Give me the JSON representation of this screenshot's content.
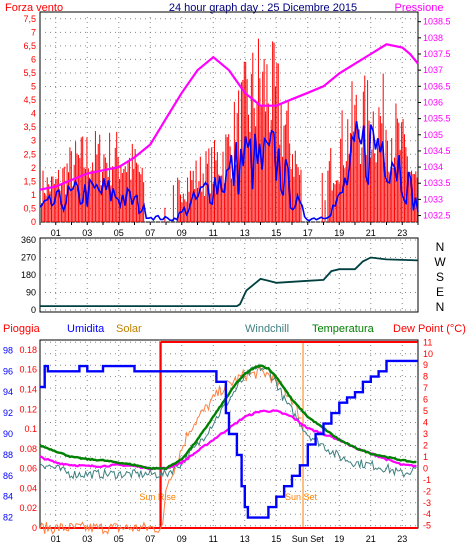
{
  "chart_data": [
    {
      "type": "line",
      "title": "24 hour graph day : 25 Dicembre 2015",
      "left_axis_label": "Forza vento",
      "right_axis_label": "Pressione",
      "x_ticks": [
        "01",
        "03",
        "05",
        "07",
        "09",
        "11",
        "13",
        "15",
        "17",
        "19",
        "21",
        "23"
      ],
      "y_left_ticks": [
        "7,5",
        "7",
        "6,5",
        "6",
        "5,5",
        "5",
        "4,5",
        "4",
        "3,5",
        "3",
        "2,5",
        "2",
        "1,5",
        "1",
        "0,5",
        "0"
      ],
      "y_right_ticks": [
        "1038.5",
        "1038",
        "1037.5",
        "1037",
        "1036.5",
        "1036",
        "1035.5",
        "1035",
        "1034.5",
        "1034",
        "1033.5",
        "1033",
        "1032.5"
      ],
      "xlim": [
        0,
        24
      ],
      "y_left_lim": [
        0,
        7.75
      ],
      "y_right_lim": [
        1032.3,
        1038.8
      ],
      "colors": {
        "wind_gust": "#ff0000",
        "wind_avg": "#0000ff",
        "pressure": "#ff00ff"
      },
      "series": [
        {
          "key": "pressure",
          "x": [
            0,
            1,
            2,
            3,
            4,
            5,
            6,
            7,
            8,
            9,
            10,
            11,
            12,
            13,
            14,
            15,
            16,
            17,
            18,
            19,
            20,
            21,
            22,
            23,
            23.5,
            24
          ],
          "values": [
            1033.3,
            1033.4,
            1033.6,
            1033.8,
            1033.9,
            1034,
            1034.3,
            1034.7,
            1035.5,
            1036.3,
            1037,
            1037.4,
            1037,
            1036.3,
            1035.9,
            1035.9,
            1036.1,
            1036.3,
            1036.5,
            1036.9,
            1037.2,
            1037.5,
            1037.8,
            1037.7,
            1037.5,
            1037.2
          ]
        }
      ]
    },
    {
      "type": "line",
      "y_ticks": [
        "360",
        "270",
        "180",
        "90",
        "0"
      ],
      "right_labels": [
        "N",
        "W",
        "S",
        "E",
        "N"
      ],
      "ylim": [
        0,
        360
      ],
      "colors": {
        "direction": "#004040"
      },
      "series": [
        {
          "key": "direction",
          "x": [
            0,
            12.5,
            12.7,
            13.1,
            14,
            14.5,
            15,
            16,
            17,
            18,
            18.5,
            19,
            20,
            20.5,
            21,
            22,
            24
          ],
          "values": [
            20,
            20,
            30,
            100,
            160,
            150,
            140,
            145,
            150,
            155,
            200,
            210,
            210,
            250,
            270,
            260,
            255
          ]
        }
      ]
    },
    {
      "type": "line",
      "legend": [
        "Pioggia",
        "Umidita",
        "Solar",
        "Windchill",
        "Temperatura",
        "Dew Point (°C)"
      ],
      "x_ticks": [
        "01",
        "03",
        "05",
        "07",
        "09",
        "11",
        "13",
        "15",
        "Sun Set",
        "19",
        "21",
        "23"
      ],
      "y_rain_ticks": [
        "0.18",
        "0.16",
        "0.14",
        "0.12",
        "0.1",
        "0.08",
        "0.06",
        "0.04",
        "0.02",
        "0"
      ],
      "y_humidity_ticks": [
        "98",
        "96",
        "94",
        "92",
        "90",
        "88",
        "86",
        "84",
        "82"
      ],
      "y_temp_ticks": [
        "11",
        "10",
        "9",
        "8",
        "7",
        "6",
        "5",
        "4",
        "3",
        "2",
        "1",
        "0",
        "-1",
        "-2",
        "-3",
        "-4",
        "-5"
      ],
      "annotations": [
        "Sun Rise",
        "Sun Set"
      ],
      "xlim": [
        0,
        24
      ],
      "humidity_lim": [
        81,
        99
      ],
      "temp_lim": [
        -5.2,
        11.2
      ],
      "colors": {
        "rain": "#ff0000",
        "humidity": "#0000ff",
        "solar": "#ff8040",
        "windchill": "#408080",
        "temperature": "#008000",
        "dewpoint": "#ff00ff",
        "sun_line": "#ff8000"
      },
      "sunrise_hour": 7.6,
      "sunset_hour": 16.7,
      "series": [
        {
          "key": "humidity",
          "x": [
            0,
            0.3,
            0.5,
            1,
            2,
            2.5,
            3,
            4,
            5,
            6,
            7,
            8,
            9,
            10,
            11,
            11.2,
            11.8,
            12,
            12.5,
            12.8,
            13,
            13.2,
            13.5,
            14,
            14.5,
            15,
            15.3,
            15.5,
            16,
            16.5,
            17,
            17.5,
            18,
            18.5,
            19,
            19.5,
            20,
            20.5,
            21,
            21.5,
            22,
            22.5,
            23,
            24
          ],
          "values": [
            94.5,
            96.5,
            96,
            96,
            96,
            96.5,
            96,
            96.5,
            96.5,
            96,
            96,
            96,
            96,
            96,
            96,
            95,
            92,
            90,
            88,
            85,
            83,
            82,
            82,
            82,
            83,
            84,
            84,
            85,
            86,
            87,
            89,
            90,
            91,
            92,
            93,
            93.5,
            94,
            95,
            95.5,
            96,
            97,
            97,
            97,
            97
          ]
        },
        {
          "key": "solar",
          "x": [
            0,
            7.8,
            8,
            8.2,
            8.5,
            9,
            9.5,
            10,
            10.5,
            11,
            11.5,
            12,
            12.5,
            13,
            13.5,
            14,
            14.5,
            15,
            15.5,
            16,
            16.3,
            16.6
          ],
          "values": [
            0,
            0,
            0.04,
            0.05,
            0.06,
            0.08,
            0.1,
            0.11,
            0.12,
            0.13,
            0.14,
            0.145,
            0.15,
            0.155,
            0.155,
            0.158,
            0.155,
            0.148,
            0.14,
            0.13,
            0.12,
            0.11
          ]
        },
        {
          "key": "windchill",
          "x": [
            0,
            1,
            2,
            3,
            4,
            5,
            6,
            7,
            8,
            9,
            10,
            11,
            12,
            12.5,
            13,
            13.5,
            14,
            14.5,
            15,
            15.5,
            16,
            17,
            18,
            19,
            20,
            21,
            22,
            23,
            24
          ],
          "values": [
            0.5,
            0,
            -0.5,
            -0.5,
            -0.5,
            -0.5,
            -0.5,
            -0.5,
            -0.5,
            0.5,
            2,
            4,
            6,
            7,
            8,
            8.5,
            8.8,
            8.5,
            7.5,
            6,
            5,
            3,
            2,
            1,
            0.5,
            0.3,
            0,
            -0.5,
            0
          ]
        },
        {
          "key": "temperature",
          "x": [
            0,
            1,
            2,
            3,
            4,
            5,
            6,
            7,
            8,
            9,
            10,
            11,
            12,
            12.5,
            13,
            13.5,
            14,
            14.5,
            15,
            15.5,
            16,
            17,
            18,
            19,
            20,
            21,
            22,
            23,
            24
          ],
          "values": [
            2,
            1.5,
            1,
            0.8,
            0.7,
            0.5,
            0.3,
            0,
            0,
            0.8,
            2.5,
            4.5,
            6.5,
            7.5,
            8.2,
            8.7,
            9,
            8.7,
            8,
            7,
            6,
            4.5,
            3.5,
            2.5,
            1.8,
            1.3,
            1,
            0.7,
            0.5
          ]
        },
        {
          "key": "dewpoint",
          "x": [
            0,
            1,
            2,
            3,
            4,
            5,
            6,
            7,
            8,
            9,
            10,
            11,
            12,
            13,
            14,
            15,
            16,
            17,
            18,
            19,
            20,
            21,
            22,
            23,
            24
          ],
          "values": [
            1,
            0.5,
            0.3,
            0.2,
            0.2,
            0.3,
            0.2,
            0,
            0,
            0.5,
            1.5,
            2.5,
            3.5,
            4.5,
            5,
            5,
            4.5,
            3.5,
            3,
            2.5,
            1.8,
            1.3,
            0.8,
            0.3,
            0.2
          ]
        }
      ]
    }
  ]
}
